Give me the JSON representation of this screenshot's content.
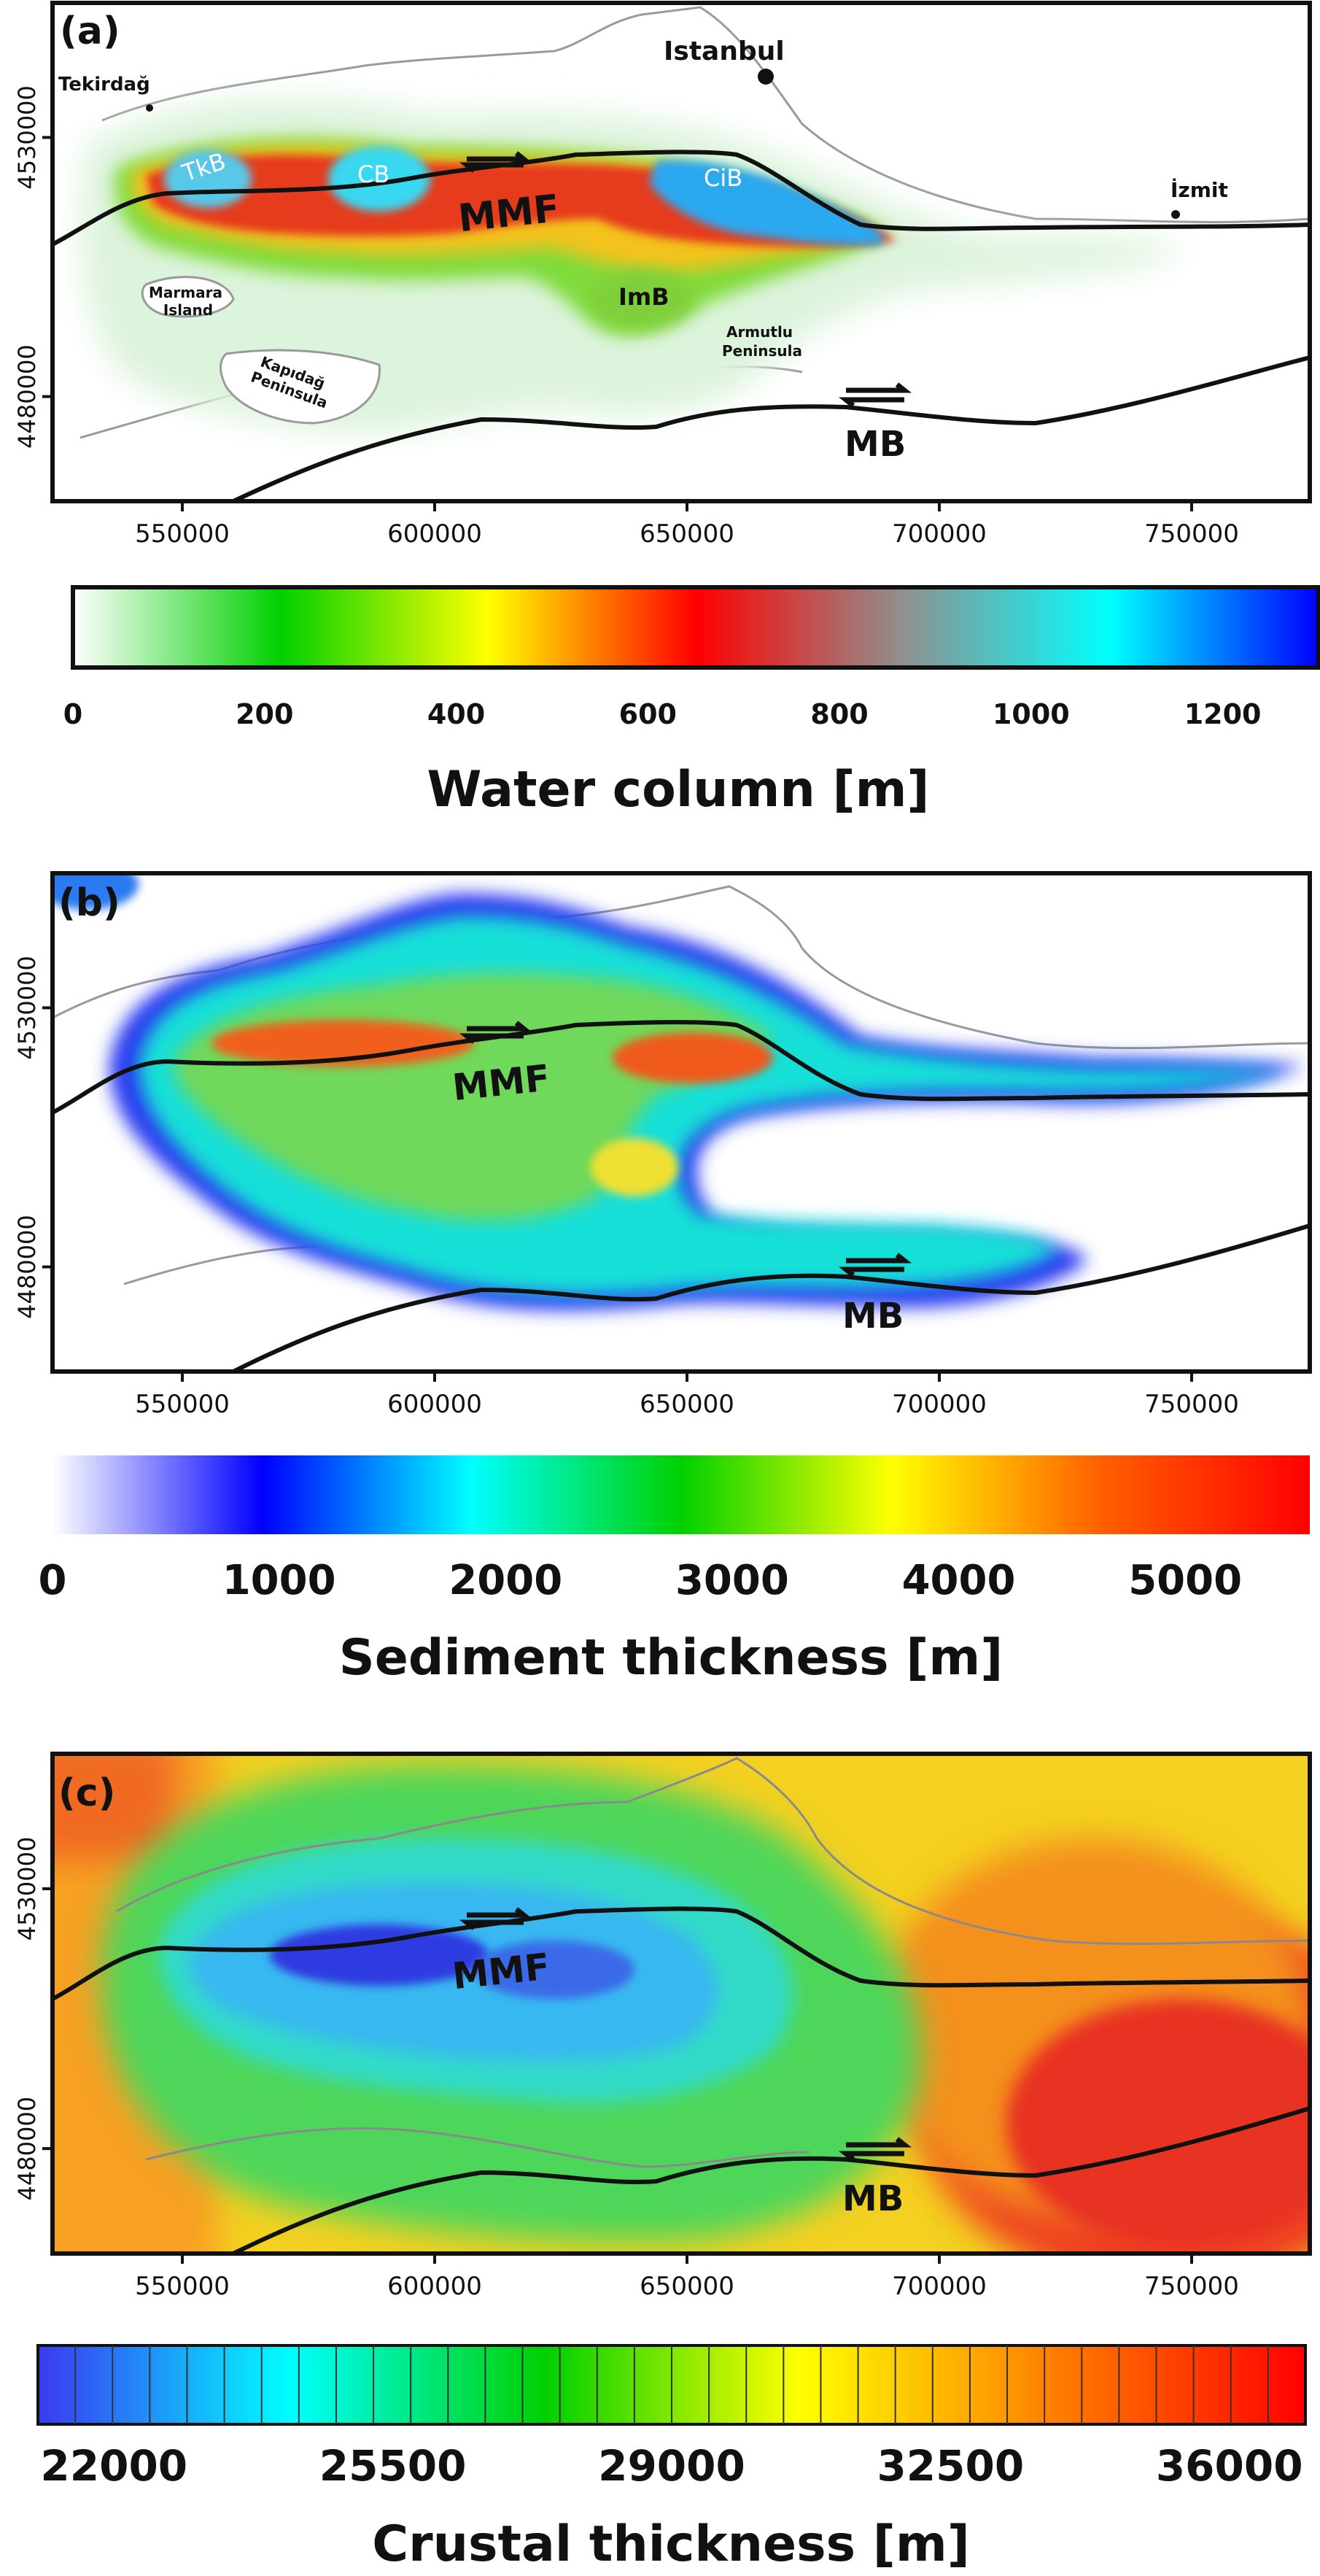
{
  "x_ticks": [
    "550000",
    "600000",
    "650000",
    "700000",
    "750000"
  ],
  "y_ticks": [
    "4530000",
    "4480000"
  ],
  "panels": [
    {
      "letter": "(a)",
      "colorbar": {
        "title": "Water column [m]",
        "ticks": [
          "0",
          "200",
          "400",
          "600",
          "800",
          "1000",
          "1200"
        ],
        "stops": [
          "#ffffff",
          "#00d000",
          "#ffff00",
          "#ff0000",
          "#909090",
          "#00ffff",
          "#0000ff"
        ]
      },
      "labels": {
        "istanbul": "Istanbul",
        "tekirdag": "Tekirdağ",
        "izmit": "İzmit",
        "marmara_island": [
          "Marmara",
          "Island"
        ],
        "kapidag": [
          "Kapıdağ",
          "Peninsula"
        ],
        "armutlu": [
          "Armutlu",
          "Peninsula"
        ],
        "tkb": "TkB",
        "cb": "CB",
        "cib": "CiB",
        "imb": "ImB",
        "mmf": "MMF",
        "mb": "MB"
      }
    },
    {
      "letter": "(b)",
      "colorbar": {
        "title": "Sediment thickness [m]",
        "ticks": [
          "0",
          "1000",
          "2000",
          "3000",
          "4000",
          "5000"
        ],
        "stops": [
          "#ffffff",
          "#0000ff",
          "#00ffff",
          "#00d000",
          "#ffff00",
          "#ff6000",
          "#ff0000"
        ]
      },
      "labels": {
        "mmf": "MMF",
        "mb": "MB"
      }
    },
    {
      "letter": "(c)",
      "colorbar": {
        "title": "Crustal thickness [m]",
        "ticks": [
          "22000",
          "25500",
          "29000",
          "32500",
          "36000"
        ],
        "stops": [
          "#3a3af0",
          "#00ffff",
          "#00d000",
          "#ffff00",
          "#ff8000",
          "#ff0000"
        ]
      },
      "labels": {
        "mmf": "MMF",
        "mb": "MB"
      }
    }
  ]
}
